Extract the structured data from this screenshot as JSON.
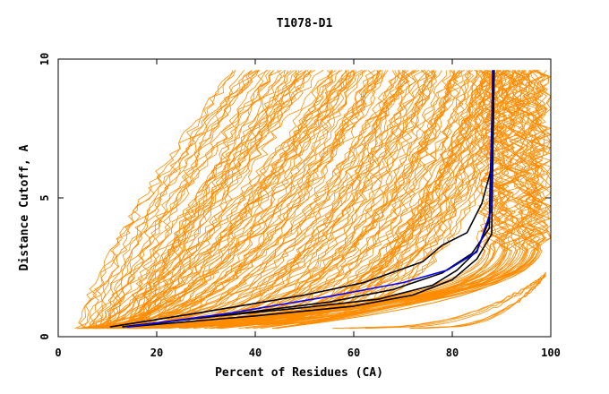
{
  "chart_data": {
    "type": "line",
    "title": "T1078-D1",
    "xlabel": "Percent of Residues (CA)",
    "ylabel": "Distance Cutoff, A",
    "xlim": [
      0,
      100
    ],
    "ylim": [
      0,
      10
    ],
    "x_ticks": [
      "0",
      "20",
      "40",
      "60",
      "80",
      "100"
    ],
    "y_ticks": [
      "0",
      "5",
      "10"
    ],
    "grid": false,
    "legend": "none",
    "colors": {
      "background_models": "#ff8c00",
      "highlight_black": "#000000",
      "highlight_blue": "#0000ff"
    },
    "highlight_series": [
      {
        "color": "black",
        "points": [
          [
            10.5,
            0.35
          ],
          [
            30,
            0.9
          ],
          [
            50,
            1.5
          ],
          [
            62,
            1.95
          ],
          [
            74,
            2.7
          ],
          [
            78,
            3.3
          ],
          [
            83,
            3.75
          ],
          [
            86,
            4.8
          ],
          [
            88,
            6.1
          ],
          [
            88.2,
            9.6
          ]
        ]
      },
      {
        "color": "black",
        "points": [
          [
            13,
            0.35
          ],
          [
            30,
            0.7
          ],
          [
            50,
            1.05
          ],
          [
            65,
            1.35
          ],
          [
            76,
            1.85
          ],
          [
            81,
            2.4
          ],
          [
            85,
            3.1
          ],
          [
            87.5,
            4.2
          ],
          [
            88.3,
            9.6
          ]
        ]
      },
      {
        "color": "black",
        "points": [
          [
            13,
            0.35
          ],
          [
            35,
            0.8
          ],
          [
            55,
            1.25
          ],
          [
            68,
            1.7
          ],
          [
            78,
            2.3
          ],
          [
            84,
            3.0
          ],
          [
            87.5,
            3.9
          ],
          [
            88.5,
            9.6
          ]
        ]
      },
      {
        "color": "black",
        "points": [
          [
            14,
            0.35
          ],
          [
            40,
            0.75
          ],
          [
            60,
            1.1
          ],
          [
            72,
            1.5
          ],
          [
            80,
            2.05
          ],
          [
            85,
            2.8
          ],
          [
            88,
            3.7
          ],
          [
            88.5,
            9.6
          ]
        ]
      },
      {
        "color": "blue",
        "points": [
          [
            14,
            0.35
          ],
          [
            35,
            0.85
          ],
          [
            55,
            1.45
          ],
          [
            70,
            1.95
          ],
          [
            79,
            2.4
          ],
          [
            85,
            3.05
          ],
          [
            87.8,
            4.5
          ],
          [
            88.2,
            9.6
          ]
        ]
      }
    ]
  }
}
